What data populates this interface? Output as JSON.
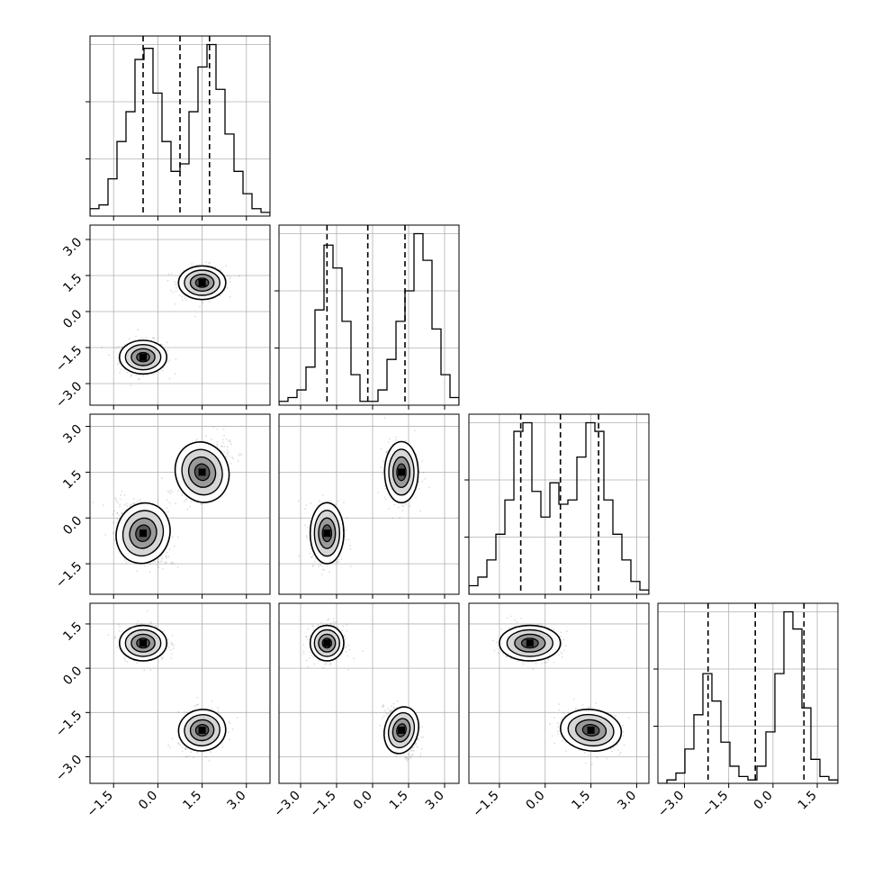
{
  "chart_data": {
    "type": "scatter",
    "subtype": "corner-plot",
    "title": "",
    "dimensions": 4,
    "grid": true,
    "legend": "none",
    "quantile_line_style": "dashed",
    "colors": {
      "axes": "#000000",
      "grid": "#b0b0b0",
      "points": "#444444",
      "hist": "#000000",
      "density": "#000000"
    },
    "ranges": [
      [
        -2.3,
        3.8
      ],
      [
        -3.9,
        3.6
      ],
      [
        -2.5,
        3.4
      ],
      [
        -3.9,
        2.2
      ]
    ],
    "ticks": [
      [
        -1.5,
        0.0,
        1.5,
        3.0
      ],
      [
        -3.0,
        -1.5,
        0.0,
        1.5,
        3.0
      ],
      [
        -1.5,
        0.0,
        1.5,
        3.0
      ],
      [
        -3.0,
        -1.5,
        0.0,
        1.5
      ]
    ],
    "tick_labels": [
      [
        "−1.5",
        "0.0",
        "1.5",
        "3.0"
      ],
      [
        "−3.0",
        "−1.5",
        "0.0",
        "1.5",
        "3.0"
      ],
      [
        "−1.5",
        "0.0",
        "1.5",
        "3.0"
      ],
      [
        "−3.0",
        "−1.5",
        "0.0",
        "1.5"
      ]
    ],
    "quantiles": [
      [
        -0.5,
        0.75,
        1.75
      ],
      [
        -1.9,
        -0.2,
        1.35
      ],
      [
        -0.8,
        0.5,
        1.75
      ],
      [
        -2.2,
        -0.6,
        1.05
      ]
    ],
    "histograms": [
      {
        "bins": 20,
        "counts": [
          2,
          3,
          10,
          20,
          28,
          42,
          45,
          33,
          20,
          12,
          14,
          28,
          40,
          46,
          34,
          22,
          12,
          6,
          2,
          1
        ]
      },
      {
        "bins": 20,
        "counts": [
          1,
          2,
          4,
          10,
          25,
          42,
          36,
          22,
          8,
          1,
          1,
          4,
          12,
          22,
          30,
          45,
          38,
          20,
          8,
          2
        ]
      },
      {
        "bins": 20,
        "counts": [
          2,
          4,
          8,
          14,
          22,
          38,
          40,
          24,
          18,
          26,
          21,
          22,
          32,
          40,
          38,
          22,
          14,
          8,
          3,
          1
        ]
      },
      {
        "bins": 20,
        "counts": [
          0,
          1,
          3,
          10,
          20,
          32,
          24,
          12,
          5,
          2,
          1,
          5,
          15,
          32,
          50,
          45,
          22,
          7,
          2,
          1
        ]
      }
    ],
    "blobs": [
      {
        "row": 1,
        "col": 0,
        "modes": [
          {
            "x": -0.5,
            "y": -1.9,
            "sx": 0.4,
            "sy": 0.35,
            "rho": 0.0
          },
          {
            "x": 1.5,
            "y": 1.2,
            "sx": 0.4,
            "sy": 0.35,
            "rho": 0.0
          }
        ]
      },
      {
        "row": 2,
        "col": 0,
        "modes": [
          {
            "x": -0.5,
            "y": -0.5,
            "sx": 0.45,
            "sy": 0.5,
            "rho": -0.5
          },
          {
            "x": 1.5,
            "y": 1.5,
            "sx": 0.45,
            "sy": 0.5,
            "rho": 0.5
          }
        ]
      },
      {
        "row": 2,
        "col": 1,
        "modes": [
          {
            "x": -1.9,
            "y": -0.5,
            "sx": 0.35,
            "sy": 0.5,
            "rho": 0.0
          },
          {
            "x": 1.2,
            "y": 1.5,
            "sx": 0.35,
            "sy": 0.5,
            "rho": 0.0
          }
        ]
      },
      {
        "row": 3,
        "col": 0,
        "modes": [
          {
            "x": -0.5,
            "y": 0.85,
            "sx": 0.4,
            "sy": 0.3,
            "rho": 0.0
          },
          {
            "x": 1.5,
            "y": -2.1,
            "sx": 0.4,
            "sy": 0.35,
            "rho": 0.2
          }
        ]
      },
      {
        "row": 3,
        "col": 1,
        "modes": [
          {
            "x": -1.9,
            "y": 0.85,
            "sx": 0.35,
            "sy": 0.3,
            "rho": 0.0
          },
          {
            "x": 1.2,
            "y": -2.1,
            "sx": 0.35,
            "sy": 0.4,
            "rho": -0.4
          }
        ]
      },
      {
        "row": 3,
        "col": 2,
        "modes": [
          {
            "x": -0.5,
            "y": 0.85,
            "sx": 0.5,
            "sy": 0.3,
            "rho": 0.0
          },
          {
            "x": 1.5,
            "y": -2.1,
            "sx": 0.5,
            "sy": 0.35,
            "rho": -0.2
          }
        ]
      }
    ]
  }
}
